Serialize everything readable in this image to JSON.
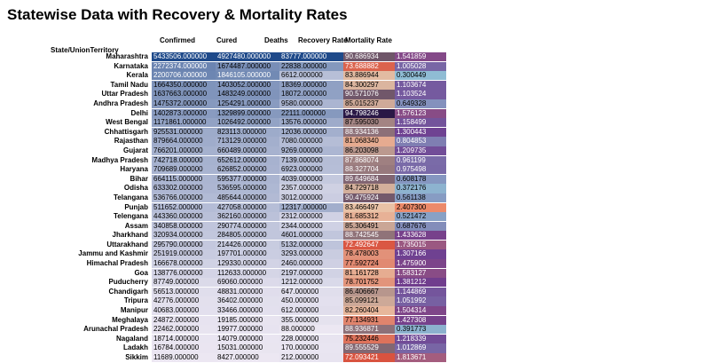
{
  "title": "Statewise Data with Recovery & Mortality Rates",
  "index_label": "State/UnionTerritory",
  "columns": [
    "Confirmed",
    "Cured",
    "Deaths",
    "Recovery Rate",
    "Mortality Rate"
  ],
  "rows": [
    {
      "state": "Maharashtra",
      "confirmed": "5433506.000000",
      "cured": "4927480.000000",
      "deaths": "83777.000000",
      "recovery": "90.686934",
      "mortality": "1.541859"
    },
    {
      "state": "Karnataka",
      "confirmed": "2272374.000000",
      "cured": "1674487.000000",
      "deaths": "22838.000000",
      "recovery": "73.688882",
      "mortality": "1.005028"
    },
    {
      "state": "Kerala",
      "confirmed": "2200706.000000",
      "cured": "1846105.000000",
      "deaths": "6612.000000",
      "recovery": "83.886944",
      "mortality": "0.300449"
    },
    {
      "state": "Tamil Nadu",
      "confirmed": "1664350.000000",
      "cured": "1403052.000000",
      "deaths": "18369.000000",
      "recovery": "84.300297",
      "mortality": "1.103674"
    },
    {
      "state": "Uttar Pradesh",
      "confirmed": "1637663.000000",
      "cured": "1483249.000000",
      "deaths": "18072.000000",
      "recovery": "90.571076",
      "mortality": "1.103524"
    },
    {
      "state": "Andhra Pradesh",
      "confirmed": "1475372.000000",
      "cured": "1254291.000000",
      "deaths": "9580.000000",
      "recovery": "85.015237",
      "mortality": "0.649328"
    },
    {
      "state": "Delhi",
      "confirmed": "1402873.000000",
      "cured": "1329899.000000",
      "deaths": "22111.000000",
      "recovery": "94.798246",
      "mortality": "1.576123"
    },
    {
      "state": "West Bengal",
      "confirmed": "1171861.000000",
      "cured": "1026492.000000",
      "deaths": "13576.000000",
      "recovery": "87.595030",
      "mortality": "1.158499"
    },
    {
      "state": "Chhattisgarh",
      "confirmed": "925531.000000",
      "cured": "823113.000000",
      "deaths": "12036.000000",
      "recovery": "88.934136",
      "mortality": "1.300443"
    },
    {
      "state": "Rajasthan",
      "confirmed": "879664.000000",
      "cured": "713129.000000",
      "deaths": "7080.000000",
      "recovery": "81.068340",
      "mortality": "0.804853"
    },
    {
      "state": "Gujarat",
      "confirmed": "766201.000000",
      "cured": "660489.000000",
      "deaths": "9269.000000",
      "recovery": "86.203098",
      "mortality": "1.209735"
    },
    {
      "state": "Madhya Pradesh",
      "confirmed": "742718.000000",
      "cured": "652612.000000",
      "deaths": "7139.000000",
      "recovery": "87.868074",
      "mortality": "0.961199"
    },
    {
      "state": "Haryana",
      "confirmed": "709689.000000",
      "cured": "626852.000000",
      "deaths": "6923.000000",
      "recovery": "88.327704",
      "mortality": "0.975498"
    },
    {
      "state": "Bihar",
      "confirmed": "664115.000000",
      "cured": "595377.000000",
      "deaths": "4039.000000",
      "recovery": "89.649684",
      "mortality": "0.608178"
    },
    {
      "state": "Odisha",
      "confirmed": "633302.000000",
      "cured": "536595.000000",
      "deaths": "2357.000000",
      "recovery": "84.729718",
      "mortality": "0.372176"
    },
    {
      "state": "Telangana",
      "confirmed": "536766.000000",
      "cured": "485644.000000",
      "deaths": "3012.000000",
      "recovery": "90.475924",
      "mortality": "0.561138"
    },
    {
      "state": "Punjab",
      "confirmed": "511652.000000",
      "cured": "427058.000000",
      "deaths": "12317.000000",
      "recovery": "83.466497",
      "mortality": "2.407300"
    },
    {
      "state": "Telengana",
      "confirmed": "443360.000000",
      "cured": "362160.000000",
      "deaths": "2312.000000",
      "recovery": "81.685312",
      "mortality": "0.521472"
    },
    {
      "state": "Assam",
      "confirmed": "340858.000000",
      "cured": "290774.000000",
      "deaths": "2344.000000",
      "recovery": "85.306491",
      "mortality": "0.687676"
    },
    {
      "state": "Jharkhand",
      "confirmed": "320934.000000",
      "cured": "284805.000000",
      "deaths": "4601.000000",
      "recovery": "88.742545",
      "mortality": "1.433628"
    },
    {
      "state": "Uttarakhand",
      "confirmed": "295790.000000",
      "cured": "214426.000000",
      "deaths": "5132.000000",
      "recovery": "72.492647",
      "mortality": "1.735015"
    },
    {
      "state": "Jammu and Kashmir",
      "confirmed": "251919.000000",
      "cured": "197701.000000",
      "deaths": "3293.000000",
      "recovery": "78.478003",
      "mortality": "1.307166"
    },
    {
      "state": "Himachal Pradesh",
      "confirmed": "166678.000000",
      "cured": "129330.000000",
      "deaths": "2460.000000",
      "recovery": "77.592724",
      "mortality": "1.475900"
    },
    {
      "state": "Goa",
      "confirmed": "138776.000000",
      "cured": "112633.000000",
      "deaths": "2197.000000",
      "recovery": "81.161728",
      "mortality": "1.583127"
    },
    {
      "state": "Puducherry",
      "confirmed": "87749.000000",
      "cured": "69060.000000",
      "deaths": "1212.000000",
      "recovery": "78.701752",
      "mortality": "1.381212"
    },
    {
      "state": "Chandigarh",
      "confirmed": "56513.000000",
      "cured": "48831.000000",
      "deaths": "647.000000",
      "recovery": "86.406667",
      "mortality": "1.144869"
    },
    {
      "state": "Tripura",
      "confirmed": "42776.000000",
      "cured": "36402.000000",
      "deaths": "450.000000",
      "recovery": "85.099121",
      "mortality": "1.051992"
    },
    {
      "state": "Manipur",
      "confirmed": "40683.000000",
      "cured": "33466.000000",
      "deaths": "612.000000",
      "recovery": "82.260404",
      "mortality": "1.504314"
    },
    {
      "state": "Meghalaya",
      "confirmed": "24872.000000",
      "cured": "19185.000000",
      "deaths": "355.000000",
      "recovery": "77.134931",
      "mortality": "1.427308"
    },
    {
      "state": "Arunachal Pradesh",
      "confirmed": "22462.000000",
      "cured": "19977.000000",
      "deaths": "88.000000",
      "recovery": "88.936871",
      "mortality": "0.391773"
    },
    {
      "state": "Nagaland",
      "confirmed": "18714.000000",
      "cured": "14079.000000",
      "deaths": "228.000000",
      "recovery": "75.232446",
      "mortality": "1.218339"
    },
    {
      "state": "Ladakh",
      "confirmed": "16784.000000",
      "cured": "15031.000000",
      "deaths": "170.000000",
      "recovery": "89.555529",
      "mortality": "1.012869"
    },
    {
      "state": "Sikkim",
      "confirmed": "11689.000000",
      "cured": "8427.000000",
      "deaths": "212.000000",
      "recovery": "72.093421",
      "mortality": "1.813671"
    }
  ],
  "colors": {
    "count_low": "#ece7f2",
    "count_high": "#1f4a8a",
    "recovery_low": "#d9533f",
    "recovery_mid": "#e9c2a6",
    "recovery_high": "#2a1846",
    "mortality_low": "#8fbcd4",
    "mortality_mid": "#6d3b8e",
    "mortality_high": "#ec8a6a"
  }
}
